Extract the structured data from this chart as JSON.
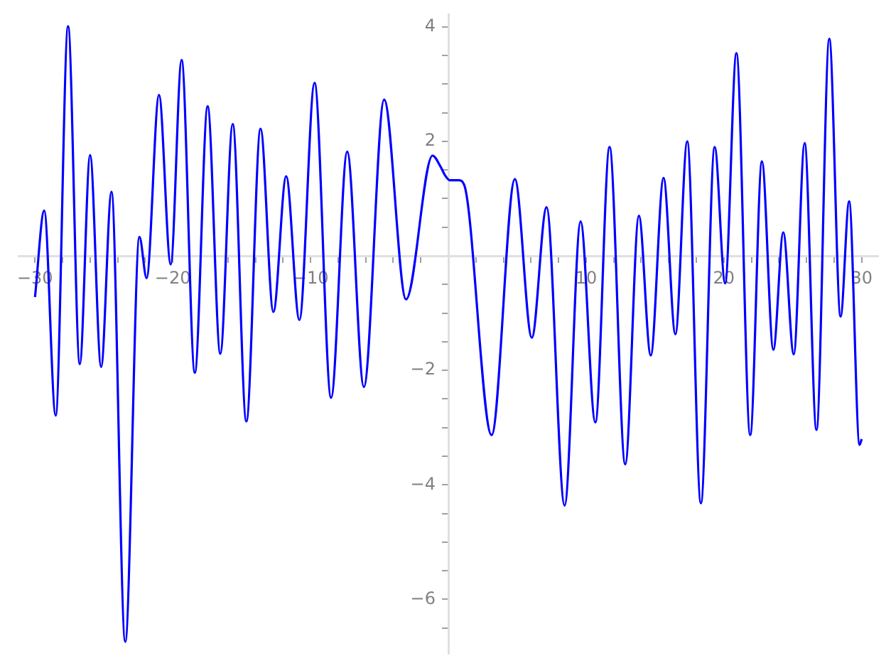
{
  "chart_data": {
    "type": "line",
    "color": "#0000ff",
    "marker": "none",
    "line_style": "solid",
    "grid": false,
    "legend": false,
    "x": [
      -30,
      -29.33,
      -28.5,
      -27.6,
      -26.75,
      -26.0,
      -25.2,
      -24.45,
      -23.45,
      -22.42,
      -21.9,
      -21.0,
      -20.15,
      -19.36,
      -18.4,
      -17.47,
      -16.55,
      -15.65,
      -14.66,
      -13.63,
      -12.7,
      -11.77,
      -10.81,
      -9.71,
      -8.51,
      -7.34,
      -6.13,
      -4.66,
      -3.07,
      -1.15,
      -0.57,
      -0.25,
      0.1,
      0.74,
      1.15,
      3.14,
      4.83,
      6.06,
      7.13,
      8.44,
      9.6,
      10.67,
      11.7,
      12.84,
      13.83,
      14.69,
      15.62,
      16.48,
      17.34,
      18.33,
      19.33,
      20.09,
      20.91,
      21.91,
      22.76,
      23.59,
      24.31,
      25.07,
      25.86,
      26.72,
      27.65,
      28.47,
      29.09,
      29.85,
      30
    ],
    "values": [
      -0.72,
      0.79,
      -2.79,
      4.01,
      -1.89,
      1.76,
      -1.94,
      1.12,
      -6.74,
      0.33,
      -0.39,
      2.81,
      -0.15,
      3.42,
      -2.04,
      2.61,
      -1.71,
      2.3,
      -2.89,
      2.22,
      -0.98,
      1.39,
      -1.12,
      3.02,
      -2.48,
      1.82,
      -2.29,
      2.73,
      -0.76,
      1.75,
      1.56,
      1.41,
      1.32,
      1.32,
      1.24,
      -3.13,
      1.34,
      -1.43,
      0.85,
      -4.36,
      0.6,
      -2.91,
      1.9,
      -3.64,
      0.7,
      -1.74,
      1.36,
      -1.37,
      2.0,
      -4.32,
      1.9,
      -0.48,
      3.54,
      -3.13,
      1.65,
      -1.64,
      0.41,
      -1.72,
      1.97,
      -3.04,
      3.79,
      -1.06,
      0.95,
      -3.3,
      -3.2
    ],
    "xlim": [
      -31.2,
      31.2
    ],
    "ylim": [
      -6.95,
      4.22
    ],
    "xticks": [
      {
        "value": -30,
        "label": "−30"
      },
      {
        "value": -28,
        "label": null
      },
      {
        "value": -26,
        "label": null
      },
      {
        "value": -24,
        "label": null
      },
      {
        "value": -22,
        "label": null
      },
      {
        "value": -20,
        "label": "−20"
      },
      {
        "value": -18,
        "label": null
      },
      {
        "value": -16,
        "label": null
      },
      {
        "value": -14,
        "label": null
      },
      {
        "value": -12,
        "label": null
      },
      {
        "value": -10,
        "label": "−10"
      },
      {
        "value": -8,
        "label": null
      },
      {
        "value": -6,
        "label": null
      },
      {
        "value": -4,
        "label": null
      },
      {
        "value": -2,
        "label": null
      },
      {
        "value": 0,
        "label": null
      },
      {
        "value": 2,
        "label": null
      },
      {
        "value": 4,
        "label": null
      },
      {
        "value": 6,
        "label": null
      },
      {
        "value": 8,
        "label": null
      },
      10,
      {
        "value": 12,
        "label": null
      },
      {
        "value": 14,
        "label": null
      },
      {
        "value": 16,
        "label": null
      },
      {
        "value": 18,
        "label": null
      },
      20,
      {
        "value": 22,
        "label": null
      },
      {
        "value": 24,
        "label": null
      },
      {
        "value": 26,
        "label": null
      },
      {
        "value": 28,
        "label": null
      },
      30
    ],
    "yticks": [
      {
        "value": -6.5,
        "label": null
      },
      {
        "value": -6,
        "label": "−6"
      },
      {
        "value": -5.5,
        "label": null
      },
      {
        "value": -5,
        "label": null
      },
      {
        "value": -4.5,
        "label": null
      },
      {
        "value": -4,
        "label": "−4"
      },
      {
        "value": -3.5,
        "label": null
      },
      {
        "value": -3,
        "label": null
      },
      {
        "value": -2.5,
        "label": null
      },
      {
        "value": -2,
        "label": "−2"
      },
      {
        "value": -1.5,
        "label": null
      },
      {
        "value": -1,
        "label": null
      },
      {
        "value": -0.5,
        "label": null
      },
      {
        "value": 0,
        "label": null
      },
      {
        "value": 0.5,
        "label": null
      },
      {
        "value": 1,
        "label": null
      },
      {
        "value": 1.5,
        "label": null
      },
      2,
      {
        "value": 2.5,
        "label": null
      },
      {
        "value": 3,
        "label": null
      },
      {
        "value": 3.5,
        "label": null
      },
      4
    ]
  }
}
